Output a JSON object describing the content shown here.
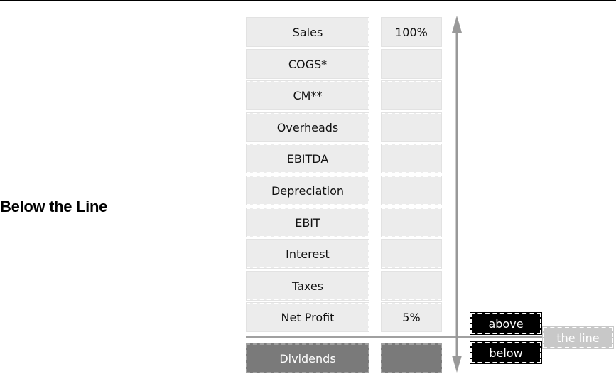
{
  "title": "Below the Line",
  "rows": [
    {
      "label": "Sales",
      "value": "100%"
    },
    {
      "label": "COGS*",
      "value": ""
    },
    {
      "label": "CM**",
      "value": ""
    },
    {
      "label": "Overheads",
      "value": ""
    },
    {
      "label": "EBITDA",
      "value": ""
    },
    {
      "label": "Depreciation",
      "value": ""
    },
    {
      "label": "EBIT",
      "value": ""
    },
    {
      "label": "Interest",
      "value": ""
    },
    {
      "label": "Taxes",
      "value": ""
    },
    {
      "label": "Net Profit",
      "value": "5%"
    }
  ],
  "below_row": {
    "label": "Dividends",
    "value": ""
  },
  "markers": {
    "above": "above",
    "below": "below",
    "line": "the line"
  },
  "colors": {
    "cell_bg": "#ececec",
    "dark_cell_bg": "#7a7a7a",
    "arrow": "#999999",
    "line_label_bg": "#c8c8c8"
  }
}
